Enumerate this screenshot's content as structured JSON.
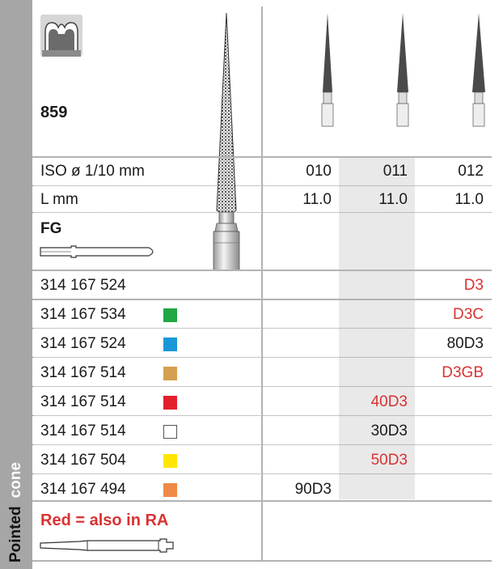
{
  "side_label": {
    "word1": "Pointed",
    "word2": "cone"
  },
  "product": {
    "figure_number": "859",
    "shank_type": "FG"
  },
  "spec_rows": [
    {
      "label": "ISO ø 1/10 mm",
      "values": [
        "010",
        "011",
        "012"
      ]
    },
    {
      "label": "L mm",
      "values": [
        "11.0",
        "11.0",
        "11.0"
      ]
    }
  ],
  "order_rows": [
    {
      "ref": "314 167 524",
      "swatch": null,
      "cells": [
        "",
        "",
        "D3"
      ],
      "red": [
        false,
        false,
        true
      ]
    },
    {
      "ref": "314 167 534",
      "swatch": "#21a744",
      "cells": [
        "",
        "",
        "D3C"
      ],
      "red": [
        false,
        false,
        true
      ]
    },
    {
      "ref": "314 167 524",
      "swatch": "#1a97d8",
      "cells": [
        "",
        "",
        "80D3"
      ],
      "red": [
        false,
        false,
        false
      ]
    },
    {
      "ref": "314 167 514",
      "swatch": "#d4a04e",
      "cells": [
        "",
        "",
        "D3GB"
      ],
      "red": [
        false,
        false,
        true
      ]
    },
    {
      "ref": "314 167 514",
      "swatch": "#e2202c",
      "cells": [
        "",
        "40D3",
        ""
      ],
      "red": [
        false,
        true,
        false
      ]
    },
    {
      "ref": "314 167 514",
      "swatch": "#ffffff",
      "cells": [
        "",
        "30D3",
        ""
      ],
      "red": [
        false,
        false,
        false
      ]
    },
    {
      "ref": "314 167 504",
      "swatch": "#ffe600",
      "cells": [
        "",
        "50D3",
        ""
      ],
      "red": [
        false,
        true,
        false
      ]
    },
    {
      "ref": "314 167 494",
      "swatch": "#ee8a45",
      "cells": [
        "90D3",
        "",
        ""
      ],
      "red": [
        false,
        false,
        false
      ]
    }
  ],
  "note": "Red = also in RA",
  "colors": {
    "band": "#a6a6a6",
    "red_text": "#d93232",
    "highlight": "#e9e9e9",
    "rule": "#b3b3b3"
  }
}
